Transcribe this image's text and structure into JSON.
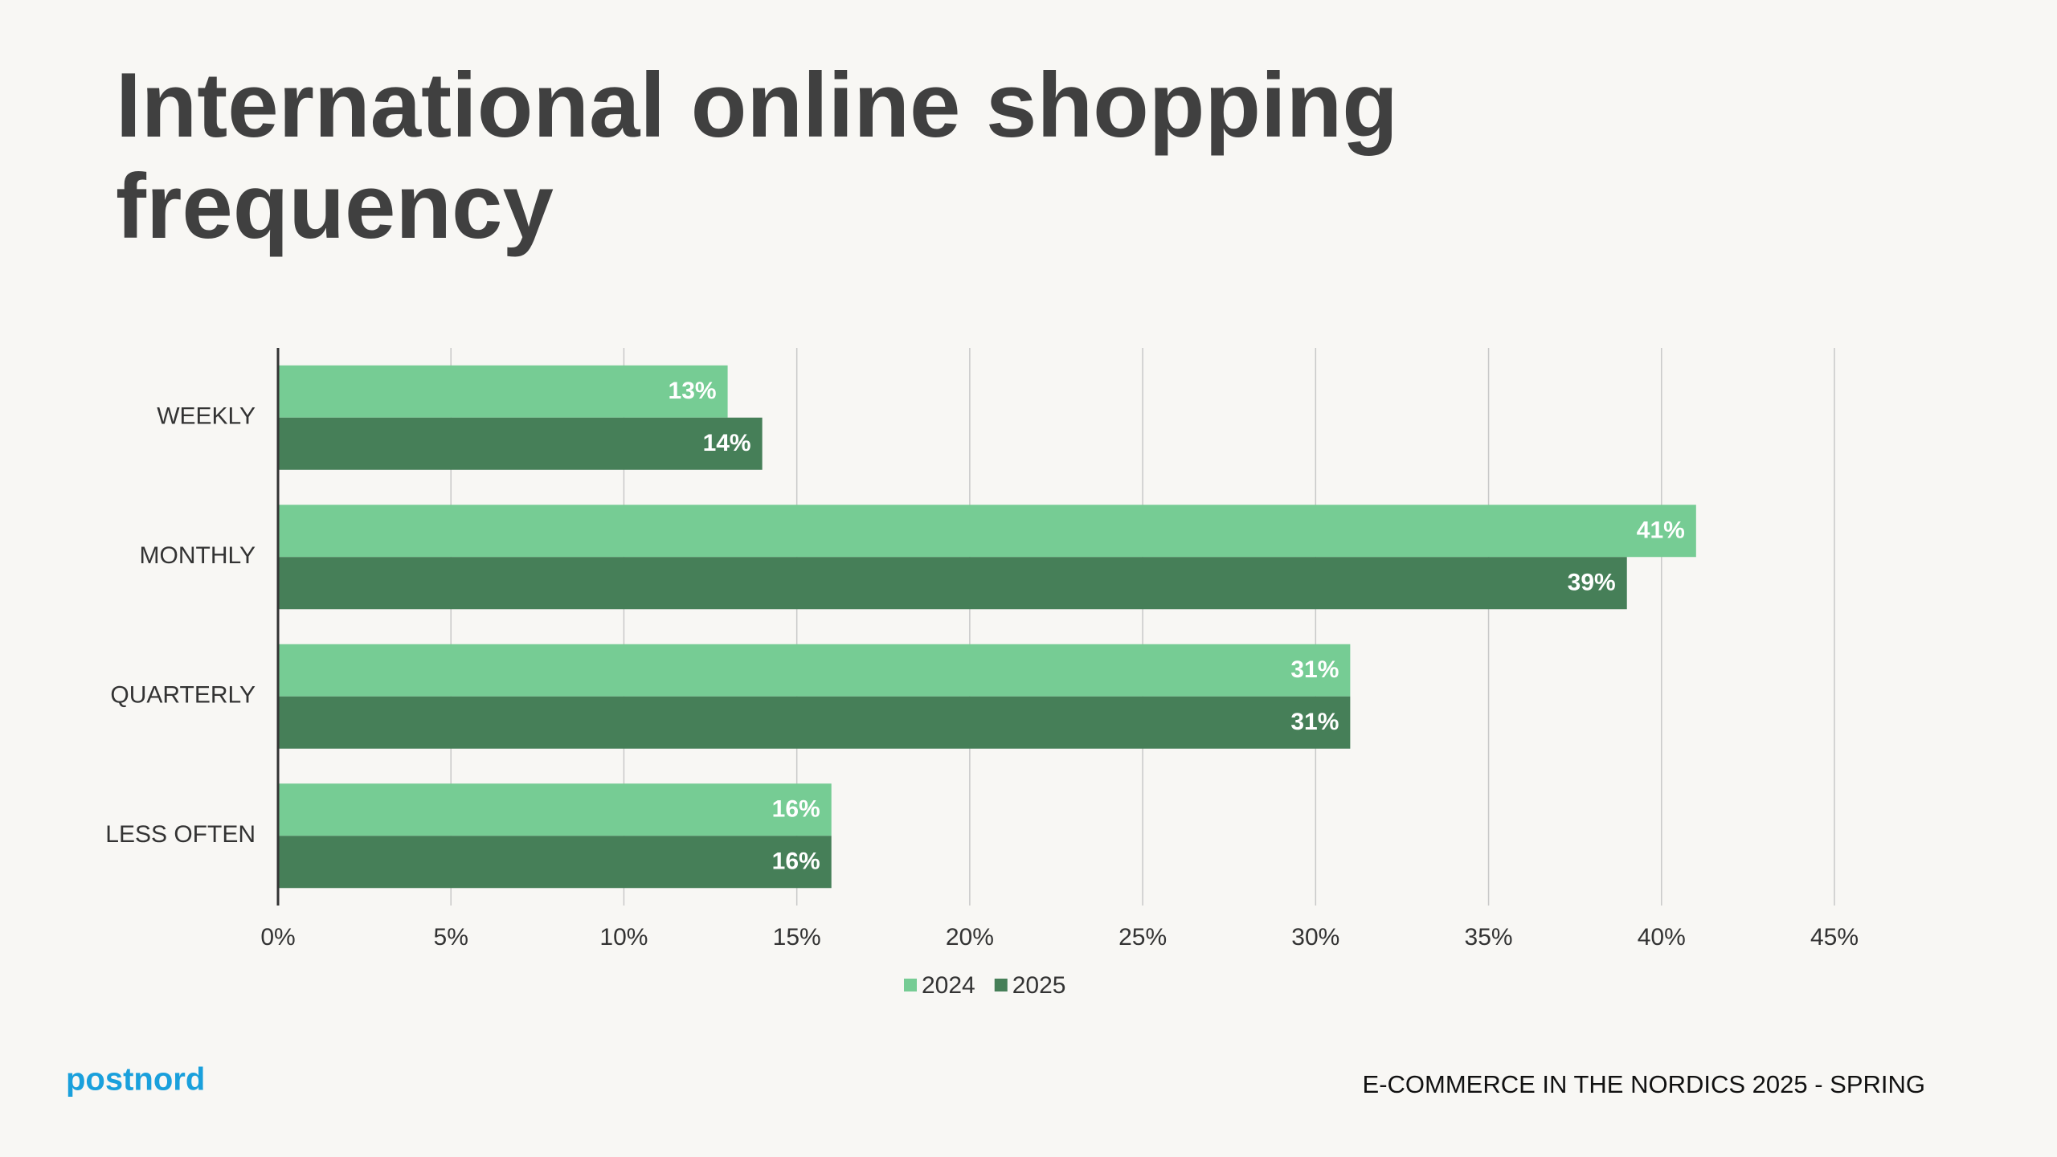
{
  "chart_data": {
    "type": "hbar",
    "title": "International online shopping frequency",
    "categories": [
      "WEEKLY",
      "MONTHLY",
      "QUARTERLY",
      "LESS OFTEN"
    ],
    "series": [
      {
        "name": "2024",
        "color": "#76cc94",
        "values": [
          13,
          41,
          31,
          16
        ],
        "value_labels": [
          "13%",
          "41%",
          "31%",
          "16%"
        ]
      },
      {
        "name": "2025",
        "color": "#467f58",
        "values": [
          14,
          39,
          31,
          16
        ],
        "value_labels": [
          "14%",
          "39%",
          "31%",
          "16%"
        ]
      }
    ],
    "xlim": [
      0,
      45
    ],
    "xticks": [
      {
        "value": 0,
        "label": "0%"
      },
      {
        "value": 5,
        "label": "5%"
      },
      {
        "value": 10,
        "label": "10%"
      },
      {
        "value": 15,
        "label": "15%"
      },
      {
        "value": 20,
        "label": "20%"
      },
      {
        "value": 25,
        "label": "25%"
      },
      {
        "value": 30,
        "label": "30%"
      },
      {
        "value": 35,
        "label": "35%"
      },
      {
        "value": 40,
        "label": "40%"
      },
      {
        "value": 45,
        "label": "45%"
      }
    ],
    "grid": true,
    "legend": "bottom"
  },
  "footer": {
    "brand": "postnord",
    "caption": "E-COMMERCE IN THE NORDICS 2025 - SPRING"
  }
}
